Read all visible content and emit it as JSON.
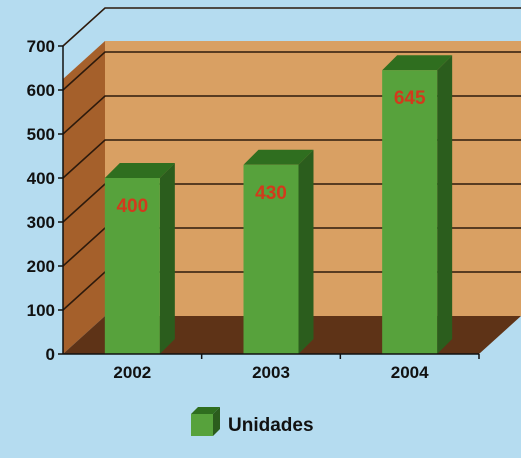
{
  "chart_data": {
    "type": "bar",
    "categories": [
      "2002",
      "2003",
      "2004"
    ],
    "series": [
      {
        "name": "Unidades",
        "values": [
          400,
          430,
          645
        ],
        "value_labels": [
          "400",
          "430",
          "645"
        ]
      }
    ],
    "ylim": [
      0,
      700
    ],
    "yticks": [
      "0",
      "100",
      "200",
      "300",
      "400",
      "500",
      "600",
      "700"
    ],
    "grid": true,
    "three_d": true,
    "legend": "bottom-center"
  },
  "colors": {
    "background": "#b5dcf0",
    "wall": "#d9a063",
    "wall_side": "#a5602b",
    "floor": "#5e3317",
    "gridline": "#2d1a0c",
    "bar_front": "#57a23c",
    "bar_top": "#2f6e1f",
    "bar_side": "#2b5d1d",
    "value_label": "#d23a1c",
    "axis_text": "#111111"
  }
}
